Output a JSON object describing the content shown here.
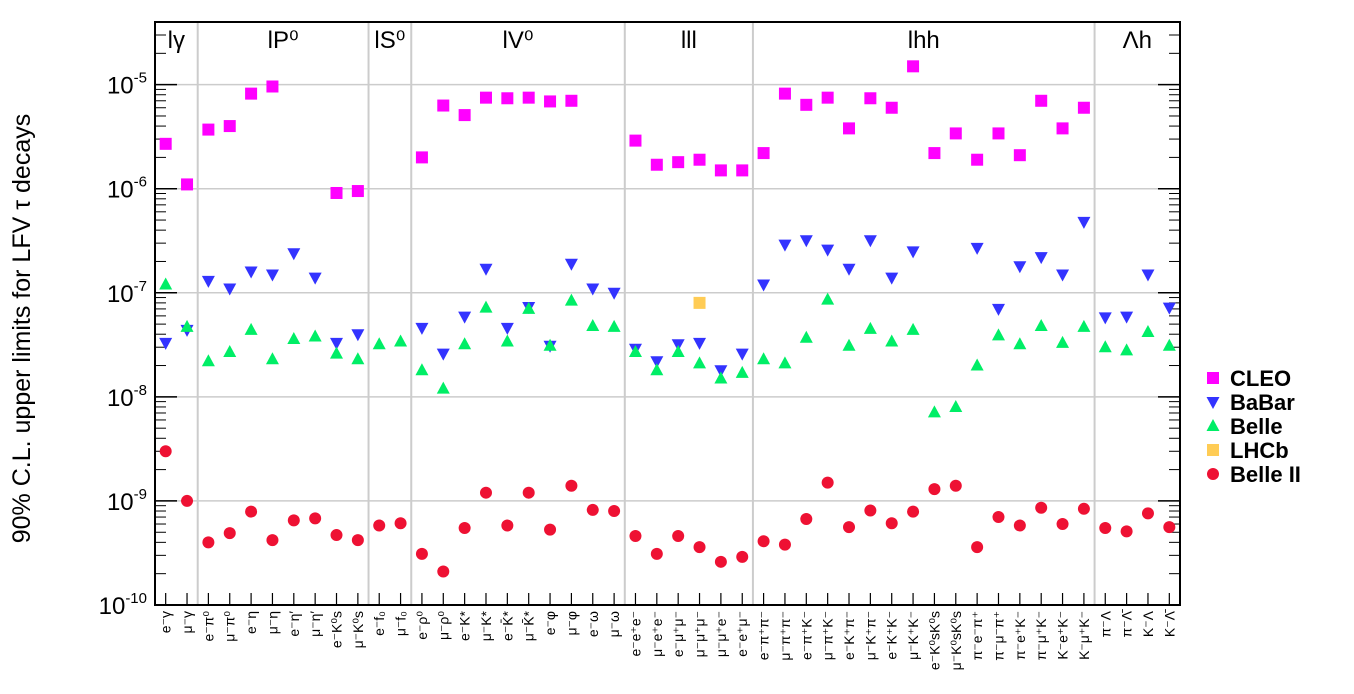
{
  "chart_data": {
    "type": "scatter",
    "ylabel": "90% C.L. upper limits for LFV τ decays",
    "yscale": "log",
    "ylim": [
      1e-10,
      4e-05
    ],
    "yticks": [
      {
        "value": 1e-10,
        "base": "10",
        "exp": "-10"
      },
      {
        "value": 1e-09,
        "base": "10",
        "exp": "-9"
      },
      {
        "value": 1e-08,
        "base": "10",
        "exp": "-8"
      },
      {
        "value": 1e-07,
        "base": "10",
        "exp": "-7"
      },
      {
        "value": 1e-06,
        "base": "10",
        "exp": "-6"
      },
      {
        "value": 1e-05,
        "base": "10",
        "exp": "-5"
      }
    ],
    "groups": [
      {
        "label": "lγ",
        "start": 0,
        "end": 2
      },
      {
        "label": "lP⁰",
        "start": 2,
        "end": 10
      },
      {
        "label": "lS⁰",
        "start": 10,
        "end": 12
      },
      {
        "label": "lV⁰",
        "start": 12,
        "end": 22
      },
      {
        "label": "lll",
        "start": 22,
        "end": 28
      },
      {
        "label": "lhh",
        "start": 28,
        "end": 44
      },
      {
        "label": "Λh",
        "start": 44,
        "end": 48
      }
    ],
    "categories": [
      "e⁻γ",
      "μ⁻γ",
      "e⁻π⁰",
      "μ⁻π⁰",
      "e⁻η",
      "μ⁻η",
      "e⁻η′",
      "μ⁻η′",
      "e⁻K⁰s",
      "μ⁻K⁰s",
      "e⁻f₀",
      "μ⁻f₀",
      "e⁻ρ⁰",
      "μ⁻ρ⁰",
      "e⁻K*",
      "μ⁻K*",
      "e⁻K̄*",
      "μ⁻K̄*",
      "e⁻φ",
      "μ⁻φ",
      "e⁻ω",
      "μ⁻ω",
      "e⁻e⁺e⁻",
      "μ⁻e⁺e⁻",
      "e⁻μ⁺μ⁻",
      "μ⁻μ⁺μ⁻",
      "μ⁻μ⁺e⁻",
      "e⁻e⁺μ⁻",
      "e⁻π⁺π⁻",
      "μ⁻π⁺π⁻",
      "e⁻π⁺K⁻",
      "μ⁻π⁺K⁻",
      "e⁻K⁺π⁻",
      "μ⁻K⁺π⁻",
      "e⁻K⁺K⁻",
      "μ⁻K⁺K⁻",
      "e⁻K⁰sK⁰s",
      "μ⁻K⁰sK⁰s",
      "π⁻e⁻π⁺",
      "π⁻μ⁻π⁺",
      "π⁻e⁺K⁻",
      "π⁻μ⁺K⁻",
      "K⁻e⁺K⁻",
      "K⁻μ⁺K⁻",
      "π⁻Λ",
      "π⁻Λ̄",
      "K⁻Λ",
      "K⁻Λ̄"
    ],
    "series": [
      {
        "name": "CLEO",
        "marker": "square",
        "color": "#ff00ff",
        "values": [
          2.7e-06,
          1.1e-06,
          3.7e-06,
          4e-06,
          8.2e-06,
          9.6e-06,
          null,
          null,
          9.1e-07,
          9.5e-07,
          null,
          null,
          2e-06,
          6.3e-06,
          5.1e-06,
          7.5e-06,
          7.4e-06,
          7.5e-06,
          6.9e-06,
          7e-06,
          null,
          null,
          2.9e-06,
          1.7e-06,
          1.8e-06,
          1.9e-06,
          1.5e-06,
          1.5e-06,
          2.2e-06,
          8.2e-06,
          6.4e-06,
          7.5e-06,
          3.8e-06,
          7.4e-06,
          6e-06,
          1.5e-05,
          2.2e-06,
          3.4e-06,
          1.9e-06,
          3.4e-06,
          2.1e-06,
          7e-06,
          3.8e-06,
          6e-06,
          null,
          null,
          null,
          null
        ]
      },
      {
        "name": "BaBar",
        "marker": "triangle-down",
        "color": "#3333ff",
        "values": [
          3.3e-08,
          4.4e-08,
          1.3e-07,
          1.1e-07,
          1.6e-07,
          1.5e-07,
          2.4e-07,
          1.4e-07,
          3.3e-08,
          4e-08,
          null,
          null,
          4.6e-08,
          2.6e-08,
          5.9e-08,
          1.7e-07,
          4.6e-08,
          7.3e-08,
          3.1e-08,
          1.9e-07,
          1.1e-07,
          1e-07,
          2.9e-08,
          2.2e-08,
          3.2e-08,
          3.3e-08,
          1.8e-08,
          2.6e-08,
          1.2e-07,
          2.9e-07,
          3.2e-07,
          2.6e-07,
          1.7e-07,
          3.2e-07,
          1.4e-07,
          2.5e-07,
          null,
          null,
          2.7e-07,
          7e-08,
          1.8e-07,
          2.2e-07,
          1.5e-07,
          4.8e-07,
          5.8e-08,
          5.9e-08,
          1.5e-07,
          7.2e-08
        ]
      },
      {
        "name": "Belle",
        "marker": "triangle-up",
        "color": "#00ee66",
        "values": [
          1.2e-07,
          4.7e-08,
          2.2e-08,
          2.7e-08,
          4.4e-08,
          2.3e-08,
          3.6e-08,
          3.8e-08,
          2.6e-08,
          2.3e-08,
          3.2e-08,
          3.4e-08,
          1.8e-08,
          1.2e-08,
          3.2e-08,
          7.2e-08,
          3.4e-08,
          7e-08,
          3.1e-08,
          8.4e-08,
          4.8e-08,
          4.7e-08,
          2.7e-08,
          1.8e-08,
          2.7e-08,
          2.1e-08,
          1.5e-08,
          1.7e-08,
          2.3e-08,
          2.1e-08,
          3.7e-08,
          8.6e-08,
          3.1e-08,
          4.5e-08,
          3.4e-08,
          4.4e-08,
          7.1e-09,
          8e-09,
          2e-08,
          3.9e-08,
          3.2e-08,
          4.8e-08,
          3.3e-08,
          4.7e-08,
          3e-08,
          2.8e-08,
          4.2e-08,
          3.1e-08
        ]
      },
      {
        "name": "LHCb",
        "marker": "square",
        "color": "#ffcc55",
        "values": [
          null,
          null,
          null,
          null,
          null,
          null,
          null,
          null,
          null,
          null,
          null,
          null,
          null,
          null,
          null,
          null,
          null,
          null,
          null,
          null,
          null,
          null,
          null,
          null,
          null,
          8e-08,
          null,
          null,
          null,
          null,
          null,
          null,
          null,
          null,
          null,
          null,
          null,
          null,
          null,
          null,
          null,
          null,
          null,
          null,
          null,
          null,
          null,
          null
        ]
      },
      {
        "name": "Belle II",
        "marker": "circle",
        "color": "#ee1133",
        "values": [
          3e-09,
          1e-09,
          4e-10,
          4.9e-10,
          7.9e-10,
          4.2e-10,
          6.5e-10,
          6.8e-10,
          4.7e-10,
          4.2e-10,
          5.8e-10,
          6.1e-10,
          3.1e-10,
          2.1e-10,
          5.5e-10,
          1.2e-09,
          5.8e-10,
          1.2e-09,
          5.3e-10,
          1.4e-09,
          8.2e-10,
          8e-10,
          4.6e-10,
          3.1e-10,
          4.6e-10,
          3.6e-10,
          2.6e-10,
          2.9e-10,
          4.1e-10,
          3.8e-10,
          6.7e-10,
          1.5e-09,
          5.6e-10,
          8.1e-10,
          6.1e-10,
          7.9e-10,
          1.3e-09,
          1.4e-09,
          3.6e-10,
          7e-10,
          5.8e-10,
          8.6e-10,
          6e-10,
          8.4e-10,
          5.5e-10,
          5.1e-10,
          7.6e-10,
          5.6e-10
        ]
      }
    ],
    "legend": {
      "placement": "right",
      "entries": [
        "CLEO",
        "BaBar",
        "Belle",
        "LHCb",
        "Belle II"
      ]
    },
    "grid": true
  }
}
